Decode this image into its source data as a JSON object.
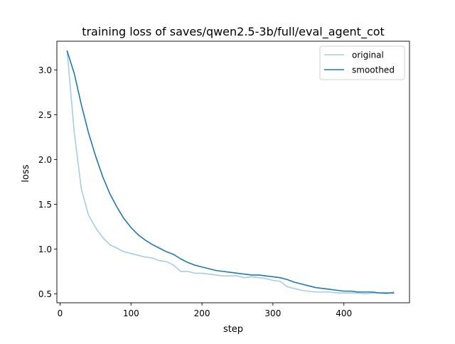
{
  "chart_data": {
    "type": "line",
    "title": "training loss of saves/qwen2.5-3b/full/eval_agent_cot",
    "xlabel": "step",
    "ylabel": "loss",
    "xlim": [
      -4.5,
      492.5
    ],
    "ylim": [
      0.4,
      3.32
    ],
    "xticks": [
      0,
      100,
      200,
      300,
      400
    ],
    "yticks": [
      0.5,
      1.0,
      1.5,
      2.0,
      2.5,
      3.0
    ],
    "ytick_labels": [
      "0.5",
      "1.0",
      "1.5",
      "2.0",
      "2.5",
      "3.0"
    ],
    "grid": false,
    "legend_position": "top-right",
    "series": [
      {
        "name": "original",
        "color": "#a6cee3",
        "x": [
          10,
          20,
          30,
          40,
          50,
          60,
          70,
          80,
          90,
          100,
          110,
          120,
          130,
          140,
          150,
          160,
          170,
          180,
          190,
          200,
          210,
          220,
          230,
          240,
          250,
          260,
          270,
          280,
          290,
          300,
          310,
          320,
          330,
          340,
          350,
          360,
          370,
          380,
          390,
          400,
          410,
          420,
          430,
          440,
          450,
          460,
          470
        ],
        "y": [
          3.21,
          2.3,
          1.67,
          1.38,
          1.24,
          1.13,
          1.05,
          1.01,
          0.97,
          0.95,
          0.93,
          0.91,
          0.9,
          0.87,
          0.86,
          0.82,
          0.75,
          0.75,
          0.73,
          0.73,
          0.72,
          0.71,
          0.7,
          0.7,
          0.7,
          0.68,
          0.69,
          0.68,
          0.67,
          0.65,
          0.64,
          0.58,
          0.56,
          0.54,
          0.53,
          0.52,
          0.52,
          0.52,
          0.51,
          0.51,
          0.51,
          0.51,
          0.5,
          0.51,
          0.51,
          0.5,
          0.52
        ]
      },
      {
        "name": "smoothed",
        "color": "#1f78b4",
        "x": [
          10,
          20,
          30,
          40,
          50,
          60,
          70,
          80,
          90,
          100,
          110,
          120,
          130,
          140,
          150,
          160,
          170,
          180,
          190,
          200,
          210,
          220,
          230,
          240,
          250,
          260,
          270,
          280,
          290,
          300,
          310,
          320,
          330,
          340,
          350,
          360,
          370,
          380,
          390,
          400,
          410,
          420,
          430,
          440,
          450,
          460,
          470
        ],
        "y": [
          3.21,
          2.96,
          2.61,
          2.3,
          2.04,
          1.81,
          1.62,
          1.47,
          1.34,
          1.24,
          1.16,
          1.1,
          1.05,
          1.01,
          0.97,
          0.94,
          0.89,
          0.85,
          0.82,
          0.8,
          0.78,
          0.76,
          0.75,
          0.74,
          0.73,
          0.72,
          0.71,
          0.71,
          0.7,
          0.69,
          0.68,
          0.66,
          0.63,
          0.61,
          0.59,
          0.57,
          0.56,
          0.55,
          0.54,
          0.53,
          0.53,
          0.52,
          0.52,
          0.52,
          0.51,
          0.51,
          0.51
        ]
      }
    ]
  }
}
